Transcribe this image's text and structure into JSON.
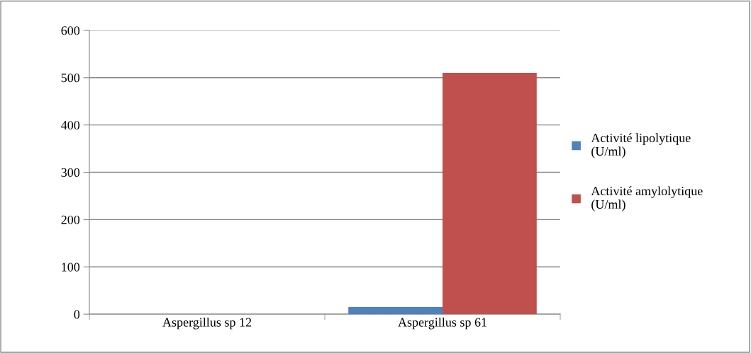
{
  "chart_data": {
    "type": "bar",
    "categories": [
      "Aspergillus sp 12",
      "Aspergillus sp 61"
    ],
    "series": [
      {
        "name": "Activité lipolytique\n(U/ml)",
        "color": "#4f81bd",
        "values": [
          0,
          15
        ]
      },
      {
        "name": "Activité amylolytique\n(U/ml)",
        "color": "#c0504d",
        "values": [
          0,
          510
        ]
      }
    ],
    "ylim": [
      0,
      600
    ],
    "yticks": [
      0,
      100,
      200,
      300,
      400,
      500,
      600
    ],
    "grid": "y",
    "legend": "right"
  }
}
